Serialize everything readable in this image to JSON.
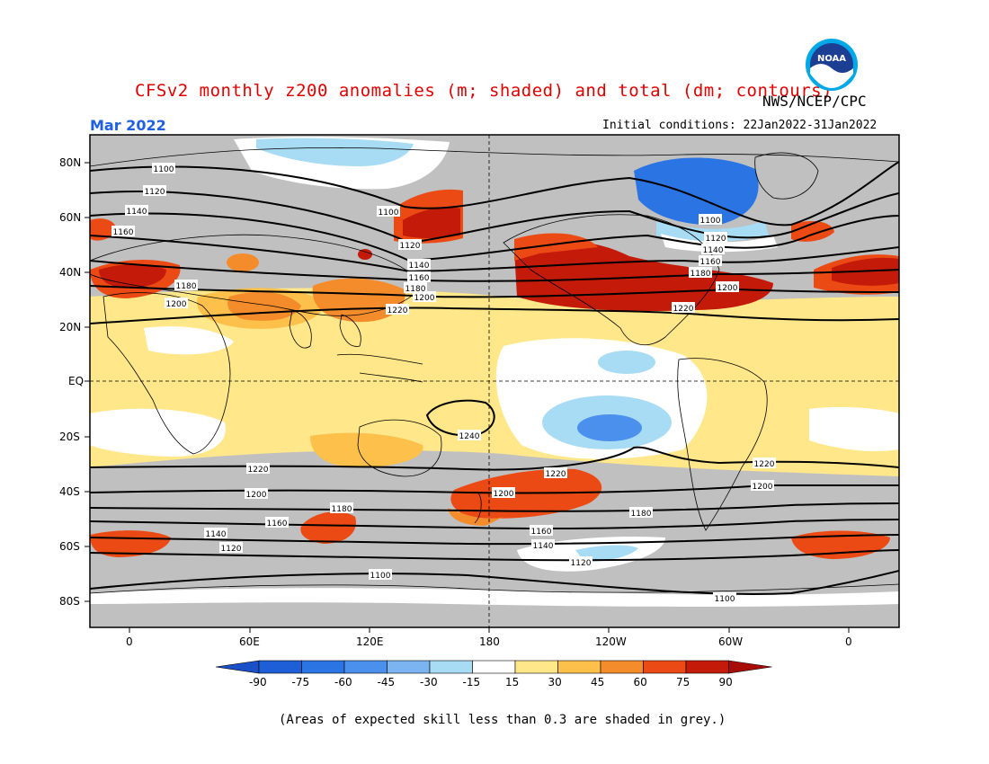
{
  "header": {
    "title": "CFSv2 monthly z200 anomalies (m; shaded) and total (dm; contours)",
    "agency": "NWS/NCEP/CPC",
    "month": "Mar 2022",
    "initial_conditions": "Initial conditions: 22Jan2022-31Jan2022"
  },
  "logo": {
    "name": "NOAA",
    "text": "NOAA"
  },
  "axes": {
    "lat_labels": [
      "80N",
      "60N",
      "40N",
      "20N",
      "EQ",
      "20S",
      "40S",
      "60S",
      "80S"
    ],
    "lon_labels": [
      "0",
      "60E",
      "120E",
      "180",
      "120W",
      "60W",
      "0"
    ]
  },
  "colorbar": {
    "ticks": [
      "-90",
      "-75",
      "-60",
      "-45",
      "-30",
      "-15",
      "15",
      "30",
      "45",
      "60",
      "75",
      "90"
    ],
    "colors": [
      "#1e5fd8",
      "#2b74e4",
      "#4a90ec",
      "#7cb4f2",
      "#a8dcf4",
      "#ffffff",
      "#ffe78a",
      "#fdc04a",
      "#f58c2c",
      "#ec4a14",
      "#c41a0a"
    ],
    "low_end_color": "#1a4fc8",
    "high_end_color": "#a80c08"
  },
  "contour_labels": [
    "1100",
    "1120",
    "1140",
    "1160",
    "1180",
    "1200",
    "1220",
    "1240"
  ],
  "colors": {
    "grey_mask": "#c0c0c0",
    "land": "#ffffff",
    "title_red": "#e00000",
    "month_blue": "#1f5fe0"
  },
  "note": "(Areas of expected skill less than 0.3 are shaded in grey.)"
}
